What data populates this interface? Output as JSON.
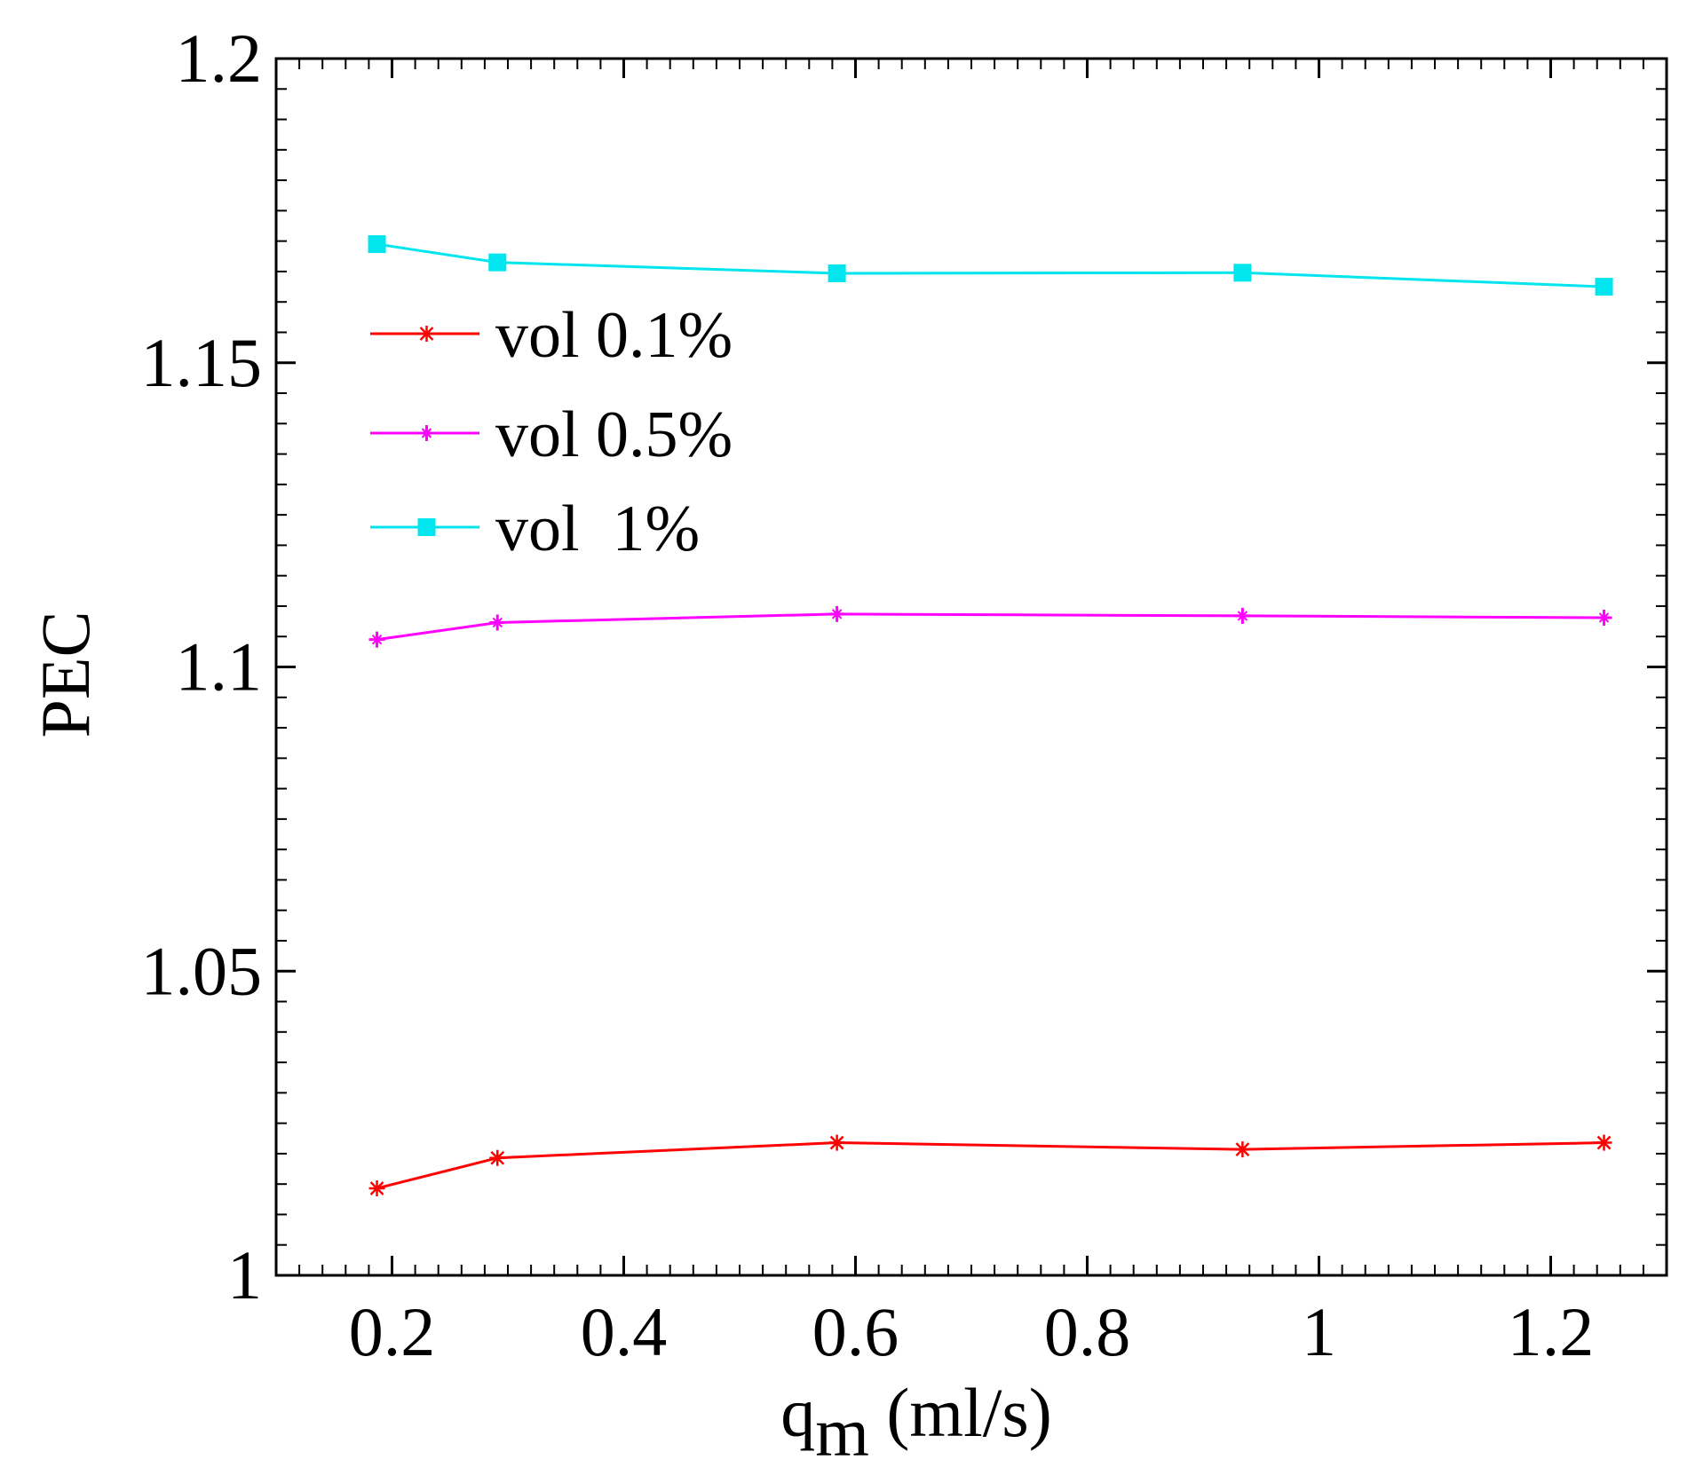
{
  "chart_data": {
    "type": "line",
    "title": "",
    "xlabel": "q",
    "xlabel_sub": "m",
    "xlabel_suffix": " (ml/s)",
    "ylabel": "PEC",
    "xlim": [
      0.1,
      1.3
    ],
    "ylim": [
      1.0,
      1.2
    ],
    "x_ticks": [
      0.2,
      0.4,
      0.6,
      0.8,
      1.0,
      1.2
    ],
    "x_tick_labels": [
      "0.2",
      "0.4",
      "0.6",
      "0.8",
      "1",
      "1.2"
    ],
    "y_ticks": [
      1.0,
      1.05,
      1.1,
      1.15,
      1.2
    ],
    "y_tick_labels": [
      "1",
      "1.05",
      "1.1",
      "1.15",
      "1.2"
    ],
    "x_minor_step": 0.02,
    "y_minor_step": 0.005,
    "grid": false,
    "legend_position": "upper-left",
    "x": [
      0.187,
      0.291,
      0.584,
      0.934,
      1.246
    ],
    "series": [
      {
        "name": "vol 0.1%",
        "color": "#ff0000",
        "marker": "asterisk",
        "values": [
          1.0143,
          1.0193,
          1.0218,
          1.0207,
          1.0218
        ]
      },
      {
        "name": "vol 0.5%",
        "color": "#ff00ff",
        "marker": "plus",
        "values": [
          1.1045,
          1.1073,
          1.1087,
          1.1084,
          1.1081
        ]
      },
      {
        "name": "vol  1%",
        "color": "#00e5ee",
        "marker": "square",
        "values": [
          1.1695,
          1.1665,
          1.1647,
          1.1648,
          1.1625
        ]
      }
    ]
  }
}
